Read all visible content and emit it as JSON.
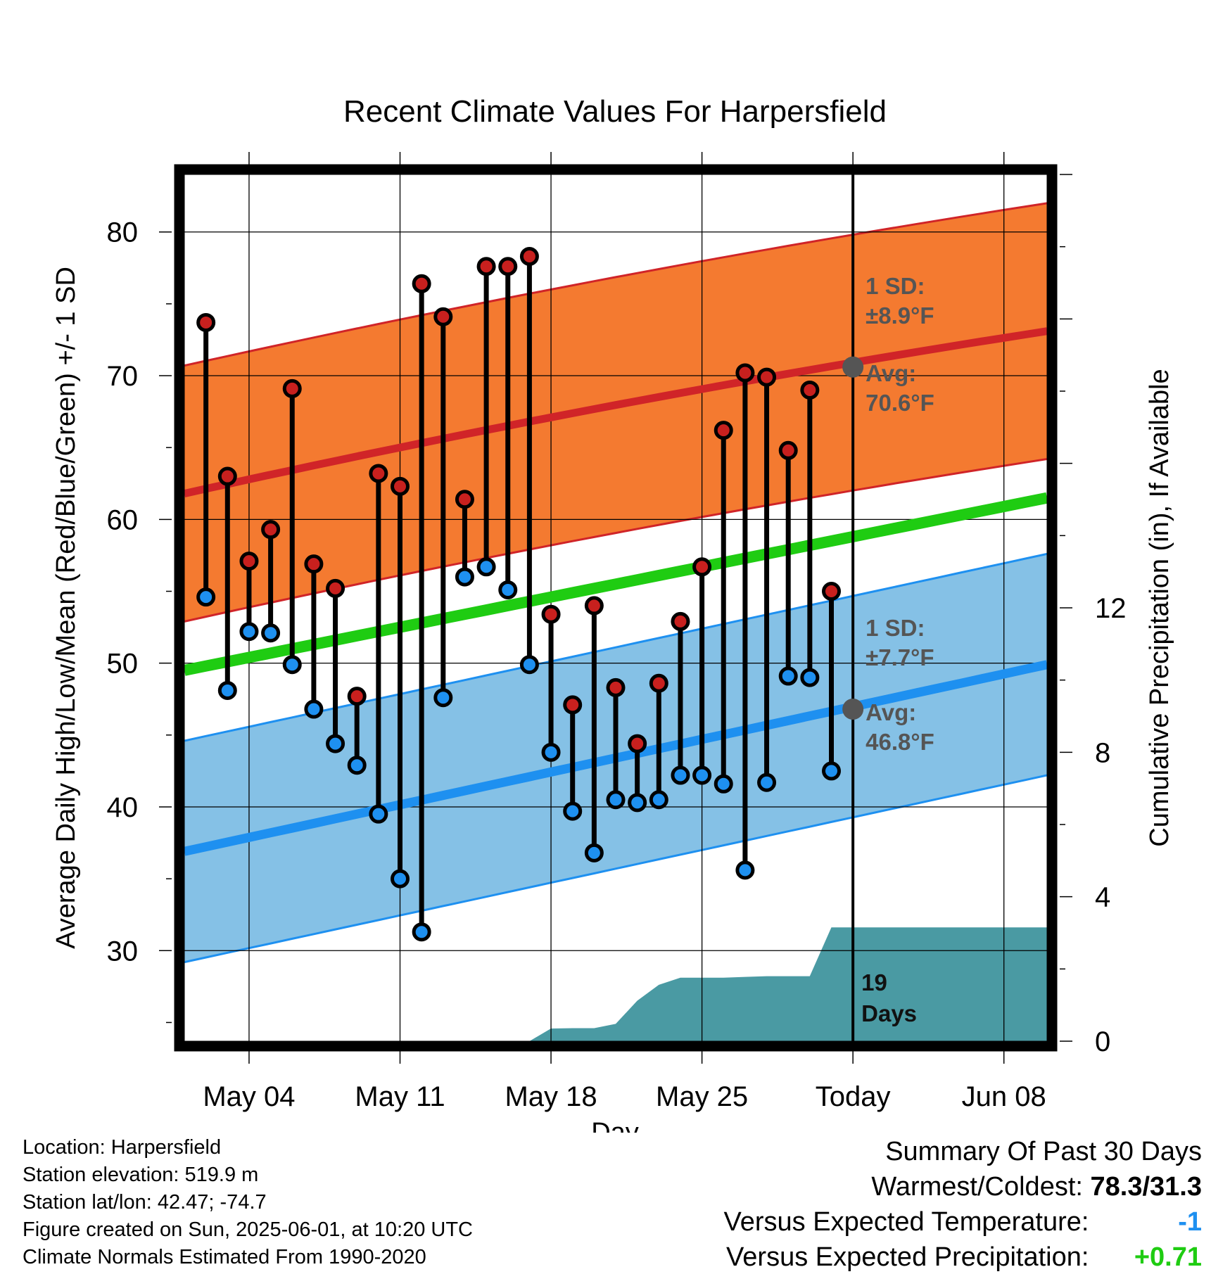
{
  "chart_data": {
    "type": "line",
    "title": "Recent Climate Values For Harpersfield",
    "xlabel": "Day",
    "ylabel": "Average Daily High/Low/Mean (Red/Blue/Green) +/- 1 SD",
    "y2label": "Cumulative Precipitation (in), If Available",
    "ylim": [
      23.7,
      84
    ],
    "y2lim": [
      0,
      24
    ],
    "y_ticks": [
      30,
      40,
      50,
      60,
      70,
      80
    ],
    "y2_ticks": [
      0,
      4,
      8,
      12
    ],
    "x_range": [
      "2025-05-01",
      "2025-06-10"
    ],
    "x_tick_labels": [
      {
        "date": "2025-05-04",
        "label": "May 04"
      },
      {
        "date": "2025-05-11",
        "label": "May 11"
      },
      {
        "date": "2025-05-18",
        "label": "May 18"
      },
      {
        "date": "2025-05-25",
        "label": "May 25"
      },
      {
        "date": "2025-06-01",
        "label": "Today"
      },
      {
        "date": "2025-06-08",
        "label": "Jun 08"
      }
    ],
    "today": "2025-06-01",
    "grid": true,
    "normals": {
      "dates": [
        "2025-05-01",
        "2025-06-10"
      ],
      "high_mean": [
        61.8,
        73.1
      ],
      "high_sd": 8.9,
      "low_mean": [
        36.9,
        49.9
      ],
      "low_sd": 7.7,
      "mean": [
        49.5,
        61.5
      ]
    },
    "series": [
      {
        "name": "High",
        "color": "#c8201e",
        "x": [
          "2025-05-02",
          "2025-05-03",
          "2025-05-04",
          "2025-05-05",
          "2025-05-06",
          "2025-05-07",
          "2025-05-08",
          "2025-05-09",
          "2025-05-10",
          "2025-05-11",
          "2025-05-12",
          "2025-05-13",
          "2025-05-14",
          "2025-05-15",
          "2025-05-16",
          "2025-05-17",
          "2025-05-18",
          "2025-05-19",
          "2025-05-20",
          "2025-05-21",
          "2025-05-22",
          "2025-05-23",
          "2025-05-24",
          "2025-05-25",
          "2025-05-26",
          "2025-05-27",
          "2025-05-28",
          "2025-05-29",
          "2025-05-30",
          "2025-05-31"
        ],
        "values": [
          73.7,
          63.0,
          57.1,
          59.3,
          69.1,
          56.9,
          55.2,
          47.7,
          63.2,
          62.3,
          76.4,
          74.1,
          61.4,
          77.6,
          77.6,
          78.3,
          53.4,
          47.1,
          54.0,
          48.3,
          44.4,
          48.6,
          52.9,
          56.7,
          66.2,
          70.2,
          69.9,
          64.8,
          69.0,
          55.0
        ]
      },
      {
        "name": "Low",
        "color": "#1e90f0",
        "x": [
          "2025-05-02",
          "2025-05-03",
          "2025-05-04",
          "2025-05-05",
          "2025-05-06",
          "2025-05-07",
          "2025-05-08",
          "2025-05-09",
          "2025-05-10",
          "2025-05-11",
          "2025-05-12",
          "2025-05-13",
          "2025-05-14",
          "2025-05-15",
          "2025-05-16",
          "2025-05-17",
          "2025-05-18",
          "2025-05-19",
          "2025-05-20",
          "2025-05-21",
          "2025-05-22",
          "2025-05-23",
          "2025-05-24",
          "2025-05-25",
          "2025-05-26",
          "2025-05-27",
          "2025-05-28",
          "2025-05-29",
          "2025-05-30",
          "2025-05-31"
        ],
        "values": [
          54.6,
          48.1,
          52.2,
          52.1,
          49.9,
          46.8,
          44.4,
          42.9,
          39.5,
          35.0,
          31.3,
          47.6,
          56.0,
          56.7,
          55.1,
          49.9,
          43.8,
          39.7,
          36.8,
          40.5,
          40.3,
          40.5,
          42.2,
          42.2,
          41.6,
          35.6,
          41.7,
          49.1,
          49.0,
          42.5
        ]
      }
    ],
    "precipitation": {
      "color": "#4a9aa3",
      "x": [
        "2025-05-01",
        "2025-05-17",
        "2025-05-18",
        "2025-05-19",
        "2025-05-20",
        "2025-05-21",
        "2025-05-22",
        "2025-05-23",
        "2025-05-24",
        "2025-05-25",
        "2025-05-26",
        "2025-05-27",
        "2025-05-28",
        "2025-05-29",
        "2025-05-30",
        "2025-05-31",
        "2025-06-01",
        "2025-06-10"
      ],
      "values": [
        0,
        0,
        0.35,
        0.36,
        0.36,
        0.48,
        1.12,
        1.56,
        1.76,
        1.76,
        1.76,
        1.78,
        1.8,
        1.8,
        1.8,
        3.15,
        3.15,
        3.15
      ]
    },
    "annotations": {
      "high_sd_label": "1 SD:",
      "high_sd_value": "±8.9°F",
      "high_avg_label": "Avg:",
      "high_avg_value": "70.6°F",
      "low_sd_label": "1 SD:",
      "low_sd_value": "±7.7°F",
      "low_avg_label": "Avg:",
      "low_avg_value": "46.8°F",
      "days_number": "19",
      "days_word": "Days",
      "high_avg": 70.6,
      "low_avg": 46.8
    },
    "colors": {
      "high_band": "#f47a30",
      "high_line": "#d02428",
      "low_band": "#85c1e6",
      "low_line": "#1e90f0",
      "mean_line": "#1fcc12",
      "annotation": "#555555"
    }
  },
  "footer": {
    "location": "Location: Harpersfield",
    "elevation": "Station elevation: 519.9 m",
    "latlon": "Station lat/lon: 42.47; -74.7",
    "created": "Figure created on Sun, 2025-06-01, at 10:20 UTC",
    "normals": "Climate Normals Estimated From 1990-2020"
  },
  "summary": {
    "title": "Summary Of Past 30 Days",
    "warm_cold_label": "Warmest/Coldest:",
    "warm_cold_value": "78.3/31.3",
    "temp_label": "Versus Expected Temperature:",
    "temp_value": "-1",
    "temp_color": "#1e90f0",
    "precip_label": "Versus Expected Precipitation:",
    "precip_value": "+0.71",
    "precip_color": "#1fcc12"
  }
}
